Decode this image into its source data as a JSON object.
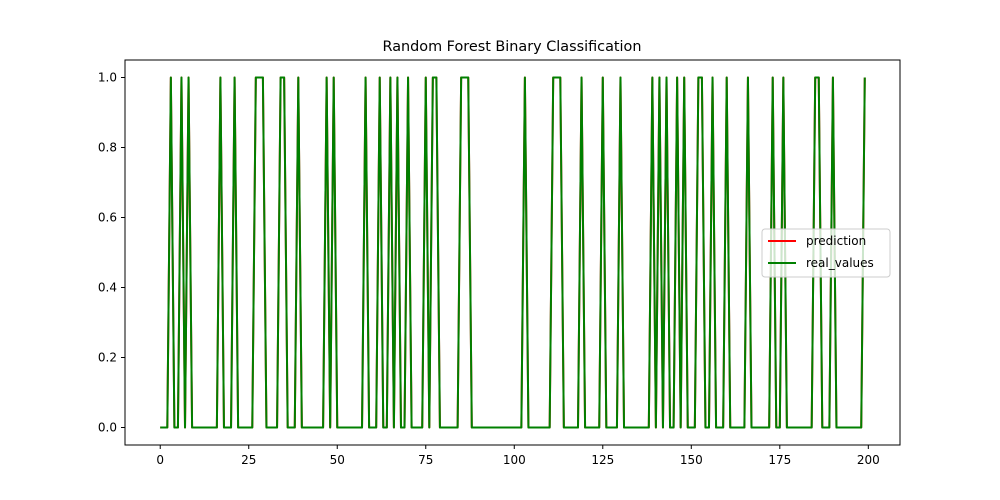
{
  "chart_data": {
    "type": "line",
    "title": "Random Forest Binary Classification",
    "xlabel": "",
    "ylabel": "",
    "xlim": [
      -9.95,
      208.95
    ],
    "ylim": [
      -0.05,
      1.05
    ],
    "x_ticks": [
      0,
      25,
      50,
      75,
      100,
      125,
      150,
      175,
      200
    ],
    "y_ticks": [
      0.0,
      0.2,
      0.4,
      0.6,
      0.8,
      1.0
    ],
    "y_tick_labels": [
      "0.0",
      "0.2",
      "0.4",
      "0.6",
      "0.8",
      "1.0"
    ],
    "legend_position": "center-right",
    "ones_indices": [
      3,
      6,
      8,
      17,
      21,
      27,
      28,
      29,
      34,
      35,
      39,
      47,
      49,
      58,
      62,
      65,
      67,
      70,
      75,
      77,
      78,
      85,
      86,
      87,
      103,
      111,
      112,
      113,
      119,
      125,
      130,
      139,
      141,
      143,
      146,
      148,
      152,
      153,
      156,
      160,
      166,
      173,
      176,
      185,
      186,
      190,
      199
    ],
    "series": [
      {
        "name": "prediction",
        "color": "#ff0000",
        "x_start": 0,
        "x_end": 199
      },
      {
        "name": "real_values",
        "color": "#008000",
        "x_start": 0,
        "x_end": 199
      }
    ]
  }
}
